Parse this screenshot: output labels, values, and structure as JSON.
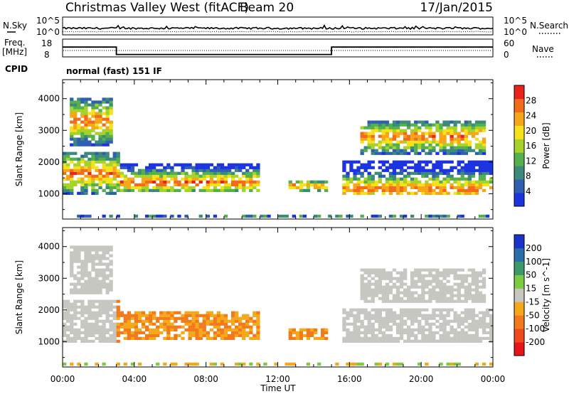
{
  "header": {
    "title": "Christmas Valley West (fitACF)",
    "beam": "Beam 20",
    "date": "17/Jan/2015"
  },
  "noise_panel": {
    "left_label": "N.Sky",
    "right_label": "N.Search",
    "left_ticks": [
      "10^5",
      "10^0"
    ],
    "right_ticks": [
      "10^5",
      "10^0"
    ]
  },
  "freq_panel": {
    "left_label_line1": "Freq.",
    "left_label_line2": "[MHz]",
    "right_label": "Nave",
    "left_ticks": [
      18,
      8
    ],
    "right_ticks": [
      60,
      0
    ],
    "freq_mhz_segments": [
      {
        "start_h": 0,
        "end_h": 3.0,
        "value": 16.0
      },
      {
        "start_h": 3.0,
        "end_h": 15.0,
        "value": 9.5
      },
      {
        "start_h": 15.0,
        "end_h": 24.0,
        "value": 16.0
      }
    ]
  },
  "cpid": {
    "label": "CPID",
    "text": "normal (fast) 151 IF"
  },
  "chart_data": [
    {
      "type": "heatmap",
      "quantity": "Power",
      "xlabel": "",
      "ylabel": "Slant Range [km]",
      "xlim": [
        0,
        24
      ],
      "ylim": [
        200,
        4600
      ],
      "yticks": [
        1000,
        2000,
        3000,
        4000
      ],
      "colorbar": {
        "label": "Power [dB]",
        "ticks": [
          4,
          8,
          12,
          16,
          20,
          24,
          28
        ],
        "range": [
          0,
          32
        ],
        "colors": [
          "#1b33e0",
          "#2f5fb0",
          "#3c8a7a",
          "#55b04c",
          "#a6d22c",
          "#f5e21a",
          "#f7a51b",
          "#f26b1d",
          "#e8231e"
        ]
      }
    },
    {
      "type": "heatmap",
      "quantity": "Velocity",
      "xlabel": "Time UT",
      "ylabel": "Slant Range [km]",
      "xlim": [
        0,
        24
      ],
      "ylim": [
        200,
        4600
      ],
      "yticks": [
        1000,
        2000,
        3000,
        4000
      ],
      "xtick_labels": [
        "00:00",
        "04:00",
        "08:00",
        "12:00",
        "16:00",
        "20:00",
        "00:00"
      ],
      "colorbar": {
        "label": "Velocity [m s^-1]",
        "ticks": [
          "200",
          "100",
          "50",
          "15",
          "-15",
          "-50",
          "-100",
          "-200"
        ],
        "colors": [
          "#1b33c8",
          "#2c6fa8",
          "#3c9a6a",
          "#7ccb42",
          "#c7c7c2",
          "#f5a81b",
          "#f27a1c",
          "#ef4a1d",
          "#e8141a"
        ]
      }
    }
  ]
}
